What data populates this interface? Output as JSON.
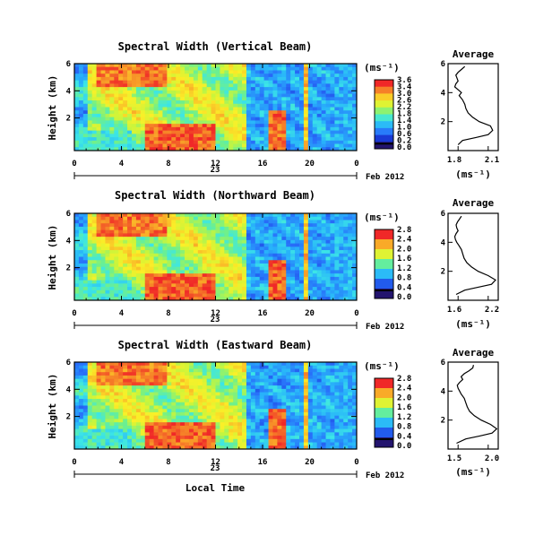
{
  "panels": [
    {
      "title": "Spectral Width (Vertical Beam)",
      "ylabel": "Height (km)",
      "colorbar": {
        "unit": "(ms⁻¹)",
        "ticks": [
          "3.6",
          "3.4",
          "3.0",
          "2.6",
          "2.2",
          "1.8",
          "1.4",
          "1.0",
          "0.6",
          "0.2",
          "0.0"
        ]
      },
      "avg": {
        "title": "Average",
        "xlabel": "(ms⁻¹)",
        "xticks": [
          "1.8",
          "2.1"
        ]
      },
      "date_label": "Feb 2012"
    },
    {
      "title": "Spectral Width (Northward Beam)",
      "ylabel": "Height (km)",
      "colorbar": {
        "unit": "(ms⁻¹)",
        "ticks": [
          "2.8",
          "2.4",
          "2.0",
          "1.6",
          "1.2",
          "0.8",
          "0.4",
          "0.0"
        ]
      },
      "avg": {
        "title": "Average",
        "xlabel": "(ms⁻¹)",
        "xticks": [
          "1.6",
          "2.2"
        ]
      },
      "date_label": "Feb 2012"
    },
    {
      "title": "Spectral Width (Eastward Beam)",
      "ylabel": "Height (km)",
      "colorbar": {
        "unit": "(ms⁻¹)",
        "ticks": [
          "2.8",
          "2.4",
          "2.0",
          "1.6",
          "1.2",
          "0.8",
          "0.4",
          "0.0"
        ]
      },
      "avg": {
        "title": "Average",
        "xlabel": "(ms⁻¹)",
        "xticks": [
          "1.5",
          "2.0"
        ]
      },
      "date_label": "Feb 2012"
    }
  ],
  "x_ticks": [
    "0",
    "4",
    "8",
    "12",
    "16",
    "20",
    "0"
  ],
  "y_ticks": [
    "6",
    "4",
    "2"
  ],
  "date_day": "23",
  "xlabel": "Local Time",
  "chart_data": [
    {
      "type": "heatmap",
      "title": "Spectral Width (Vertical Beam)",
      "ylabel": "Height (km)",
      "x_range_hours": [
        0,
        24
      ],
      "ylim": [
        0,
        6
      ],
      "colorbar_range": [
        0.0,
        3.6
      ]
    },
    {
      "type": "line",
      "title": "Average",
      "xlabel": "(ms⁻¹)",
      "xlim": [
        1.7,
        2.15
      ],
      "ylim": [
        0,
        6
      ],
      "x": [
        1.79,
        1.83,
        1.95,
        2.06,
        2.1,
        2.08,
        1.98,
        1.92,
        1.88,
        1.86,
        1.85,
        1.83,
        1.8,
        1.82,
        1.79,
        1.76,
        1.77,
        1.79,
        1.78,
        1.77,
        1.79,
        1.82,
        1.85
      ],
      "y": [
        0.4,
        0.7,
        0.9,
        1.1,
        1.4,
        1.7,
        2.0,
        2.3,
        2.6,
        2.9,
        3.2,
        3.5,
        3.8,
        4.0,
        4.2,
        4.4,
        4.6,
        4.8,
        5.0,
        5.2,
        5.4,
        5.6,
        5.8
      ]
    },
    {
      "type": "heatmap",
      "title": "Spectral Width (Northward Beam)",
      "ylabel": "Height (km)",
      "x_range_hours": [
        0,
        24
      ],
      "ylim": [
        0,
        6
      ],
      "colorbar_range": [
        0.0,
        2.8
      ]
    },
    {
      "type": "line",
      "title": "Average",
      "xlabel": "(ms⁻¹)",
      "xlim": [
        1.5,
        2.25
      ],
      "ylim": [
        0,
        6
      ],
      "x": [
        1.62,
        1.75,
        1.95,
        2.15,
        2.21,
        2.1,
        1.95,
        1.85,
        1.78,
        1.74,
        1.72,
        1.7,
        1.66,
        1.63,
        1.61,
        1.6,
        1.62,
        1.65,
        1.63,
        1.62,
        1.64,
        1.67,
        1.7
      ],
      "y": [
        0.4,
        0.7,
        0.9,
        1.1,
        1.4,
        1.7,
        2.0,
        2.3,
        2.6,
        2.9,
        3.2,
        3.5,
        3.8,
        4.0,
        4.2,
        4.4,
        4.6,
        4.8,
        5.0,
        5.2,
        5.4,
        5.6,
        5.8
      ]
    },
    {
      "type": "heatmap",
      "title": "Spectral Width (Eastward Beam)",
      "ylabel": "Height (km)",
      "x_range_hours": [
        0,
        24
      ],
      "ylim": [
        0,
        6
      ],
      "colorbar_range": [
        0.0,
        2.8
      ]
    },
    {
      "type": "line",
      "title": "Average",
      "xlabel": "(ms⁻¹)",
      "xlim": [
        1.45,
        2.1
      ],
      "ylim": [
        0,
        6
      ],
      "x": [
        1.56,
        1.68,
        1.86,
        2.02,
        2.08,
        2.0,
        1.88,
        1.79,
        1.73,
        1.7,
        1.68,
        1.66,
        1.62,
        1.6,
        1.58,
        1.57,
        1.6,
        1.64,
        1.62,
        1.66,
        1.72,
        1.77,
        1.78
      ],
      "y": [
        0.4,
        0.7,
        0.9,
        1.1,
        1.4,
        1.7,
        2.0,
        2.3,
        2.6,
        2.9,
        3.2,
        3.5,
        3.8,
        4.0,
        4.2,
        4.4,
        4.6,
        4.8,
        5.0,
        5.2,
        5.4,
        5.6,
        5.8
      ]
    }
  ]
}
